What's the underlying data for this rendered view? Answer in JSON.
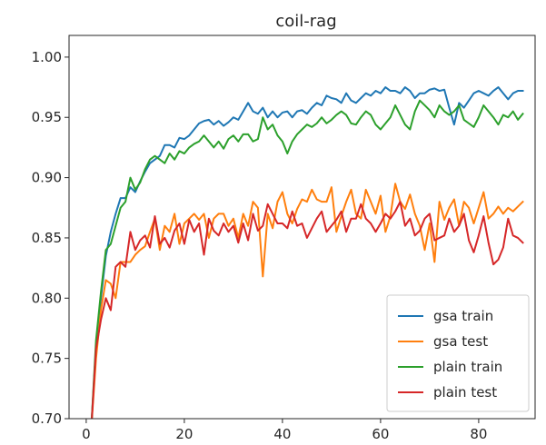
{
  "chart_data": {
    "type": "line",
    "title": "coil-rag",
    "xlabel": "",
    "ylabel": "",
    "xlim": [
      -3.5,
      91.5
    ],
    "ylim": [
      0.7,
      1.018
    ],
    "xticks": [
      0,
      20,
      40,
      60,
      80
    ],
    "xtick_labels": [
      "0",
      "20",
      "40",
      "60",
      "80"
    ],
    "yticks": [
      0.7,
      0.75,
      0.8,
      0.85,
      0.9,
      0.95,
      1.0
    ],
    "ytick_labels": [
      "0.70",
      "0.75",
      "0.80",
      "0.85",
      "0.90",
      "0.95",
      "1.00"
    ],
    "grid": false,
    "legend_position": "bottom-right",
    "x": [
      1,
      2,
      3,
      4,
      5,
      6,
      7,
      8,
      9,
      10,
      11,
      12,
      13,
      14,
      15,
      16,
      17,
      18,
      19,
      20,
      21,
      22,
      23,
      24,
      25,
      26,
      27,
      28,
      29,
      30,
      31,
      32,
      33,
      34,
      35,
      36,
      37,
      38,
      39,
      40,
      41,
      42,
      43,
      44,
      45,
      46,
      47,
      48,
      49,
      50,
      51,
      52,
      53,
      54,
      55,
      56,
      57,
      58,
      59,
      60,
      61,
      62,
      63,
      64,
      65,
      66,
      67,
      68,
      69,
      70,
      71,
      72,
      73,
      74,
      75,
      76,
      77,
      78,
      79,
      80,
      81,
      82,
      83,
      84,
      85,
      86,
      87,
      88,
      89
    ],
    "series": [
      {
        "name": "gsa train",
        "color": "#1f77b4",
        "values": [
          0.69,
          0.76,
          0.8,
          0.835,
          0.855,
          0.87,
          0.883,
          0.883,
          0.892,
          0.888,
          0.897,
          0.905,
          0.912,
          0.915,
          0.918,
          0.927,
          0.927,
          0.925,
          0.933,
          0.932,
          0.935,
          0.94,
          0.945,
          0.947,
          0.948,
          0.944,
          0.947,
          0.943,
          0.946,
          0.95,
          0.948,
          0.955,
          0.962,
          0.955,
          0.953,
          0.958,
          0.95,
          0.955,
          0.95,
          0.954,
          0.955,
          0.95,
          0.955,
          0.956,
          0.953,
          0.958,
          0.962,
          0.96,
          0.968,
          0.966,
          0.965,
          0.962,
          0.97,
          0.964,
          0.962,
          0.966,
          0.97,
          0.968,
          0.972,
          0.97,
          0.975,
          0.972,
          0.972,
          0.97,
          0.975,
          0.972,
          0.966,
          0.97,
          0.97,
          0.973,
          0.974,
          0.972,
          0.973,
          0.958,
          0.944,
          0.962,
          0.958,
          0.964,
          0.97,
          0.972,
          0.97,
          0.968,
          0.972,
          0.975,
          0.97,
          0.965,
          0.97,
          0.972,
          0.972
        ]
      },
      {
        "name": "gsa test",
        "color": "#ff7f0e",
        "values": [
          0.69,
          0.75,
          0.79,
          0.815,
          0.812,
          0.8,
          0.83,
          0.83,
          0.83,
          0.836,
          0.84,
          0.843,
          0.855,
          0.866,
          0.84,
          0.86,
          0.855,
          0.87,
          0.845,
          0.862,
          0.866,
          0.87,
          0.865,
          0.87,
          0.85,
          0.866,
          0.87,
          0.87,
          0.86,
          0.866,
          0.85,
          0.87,
          0.86,
          0.88,
          0.875,
          0.818,
          0.87,
          0.858,
          0.88,
          0.888,
          0.87,
          0.862,
          0.874,
          0.882,
          0.88,
          0.89,
          0.882,
          0.88,
          0.88,
          0.892,
          0.855,
          0.868,
          0.88,
          0.89,
          0.87,
          0.866,
          0.89,
          0.88,
          0.87,
          0.885,
          0.855,
          0.868,
          0.895,
          0.88,
          0.874,
          0.886,
          0.87,
          0.86,
          0.84,
          0.862,
          0.83,
          0.88,
          0.865,
          0.875,
          0.882,
          0.86,
          0.88,
          0.875,
          0.862,
          0.875,
          0.888,
          0.866,
          0.87,
          0.876,
          0.87,
          0.875,
          0.872,
          0.876,
          0.88
        ]
      },
      {
        "name": "plain train",
        "color": "#2ca02c",
        "values": [
          0.69,
          0.765,
          0.805,
          0.84,
          0.845,
          0.86,
          0.875,
          0.88,
          0.9,
          0.89,
          0.896,
          0.907,
          0.915,
          0.918,
          0.915,
          0.912,
          0.92,
          0.915,
          0.922,
          0.92,
          0.925,
          0.928,
          0.93,
          0.935,
          0.93,
          0.925,
          0.93,
          0.924,
          0.932,
          0.935,
          0.93,
          0.936,
          0.936,
          0.93,
          0.932,
          0.95,
          0.94,
          0.944,
          0.935,
          0.93,
          0.92,
          0.93,
          0.936,
          0.94,
          0.944,
          0.942,
          0.945,
          0.95,
          0.945,
          0.948,
          0.952,
          0.955,
          0.952,
          0.945,
          0.944,
          0.95,
          0.955,
          0.952,
          0.944,
          0.94,
          0.945,
          0.95,
          0.96,
          0.952,
          0.944,
          0.94,
          0.955,
          0.964,
          0.96,
          0.956,
          0.95,
          0.96,
          0.955,
          0.952,
          0.955,
          0.96,
          0.948,
          0.945,
          0.942,
          0.95,
          0.96,
          0.955,
          0.95,
          0.944,
          0.952,
          0.95,
          0.955,
          0.948,
          0.953
        ]
      },
      {
        "name": "plain test",
        "color": "#d62728",
        "values": [
          0.69,
          0.758,
          0.782,
          0.8,
          0.79,
          0.826,
          0.83,
          0.826,
          0.855,
          0.84,
          0.848,
          0.852,
          0.842,
          0.868,
          0.845,
          0.85,
          0.842,
          0.856,
          0.862,
          0.845,
          0.865,
          0.855,
          0.862,
          0.836,
          0.866,
          0.856,
          0.852,
          0.862,
          0.855,
          0.86,
          0.846,
          0.862,
          0.848,
          0.87,
          0.856,
          0.86,
          0.878,
          0.87,
          0.862,
          0.862,
          0.858,
          0.872,
          0.86,
          0.862,
          0.85,
          0.858,
          0.866,
          0.872,
          0.855,
          0.86,
          0.865,
          0.872,
          0.855,
          0.866,
          0.866,
          0.878,
          0.866,
          0.862,
          0.855,
          0.862,
          0.87,
          0.866,
          0.872,
          0.88,
          0.86,
          0.866,
          0.852,
          0.856,
          0.866,
          0.87,
          0.848,
          0.85,
          0.852,
          0.866,
          0.855,
          0.86,
          0.87,
          0.848,
          0.838,
          0.852,
          0.868,
          0.846,
          0.828,
          0.832,
          0.842,
          0.866,
          0.852,
          0.85,
          0.846
        ]
      }
    ]
  }
}
